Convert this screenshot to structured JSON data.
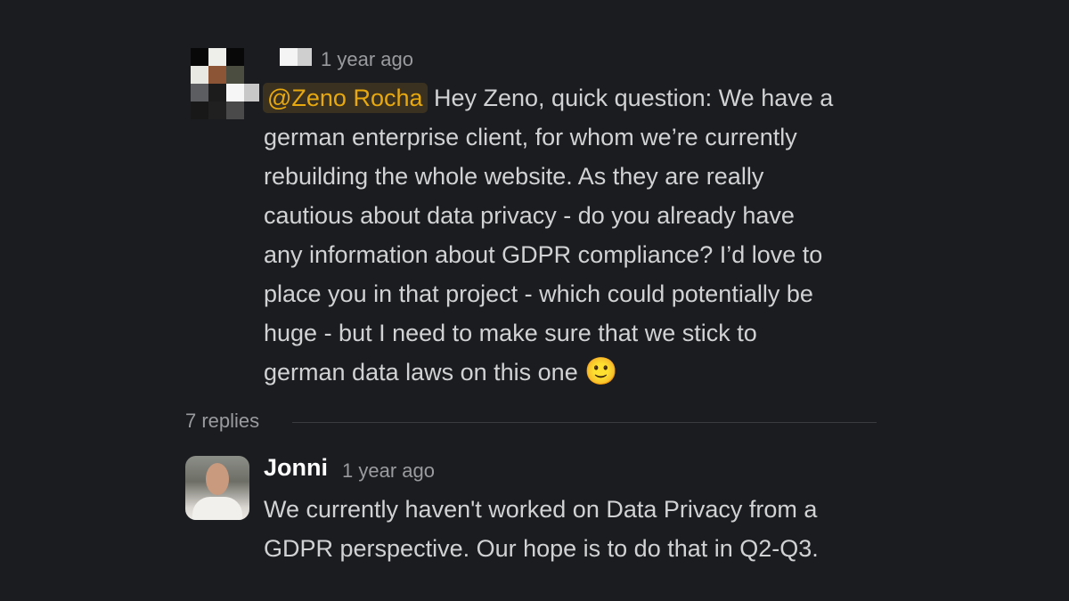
{
  "message": {
    "author_redacted": true,
    "timestamp": "1 year ago",
    "mention": "@Zeno Rocha",
    "lines": [
      " Hey Zeno, quick question: We have a",
      "german enterprise client, for whom we’re currently",
      "rebuilding the whole website. As they are really",
      "cautious about data privacy - do you already have",
      "any information about GDPR compliance? I’d love to",
      "place you in that project - which could potentially be",
      "huge - but I need to make sure that we stick to",
      "german data laws on this one "
    ],
    "emoji": "🙂",
    "mention_color": "#e8a90f"
  },
  "thread": {
    "replies_label": "7 replies"
  },
  "reply": {
    "author": "Jonni",
    "timestamp": "1 year ago",
    "lines": [
      "We currently haven't worked on Data Privacy from a",
      "GDPR perspective. Our hope is to do that in Q2-Q3."
    ]
  }
}
